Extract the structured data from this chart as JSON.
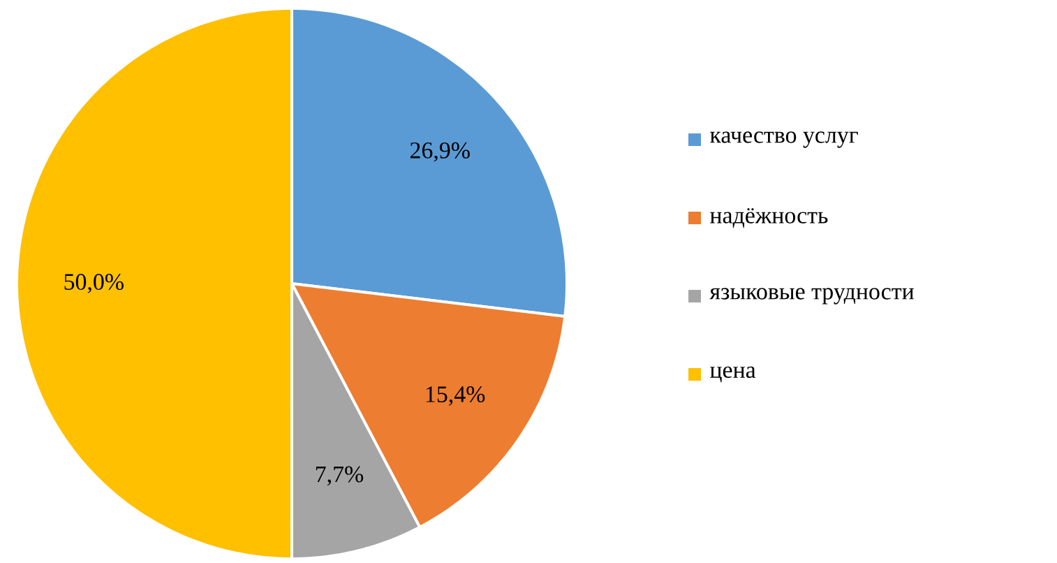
{
  "chart_data": {
    "type": "pie",
    "categories": [
      "качество услуг",
      "надёжность",
      "языковые трудности",
      "цена"
    ],
    "values": [
      26.9,
      15.4,
      7.7,
      50.0
    ],
    "colors": [
      "#5b9bd5",
      "#ed7d31",
      "#a5a5a5",
      "#ffc000"
    ],
    "value_labels": [
      "26,9%",
      "15,4%",
      "7,7%",
      "50,0%"
    ],
    "legend": "right"
  }
}
